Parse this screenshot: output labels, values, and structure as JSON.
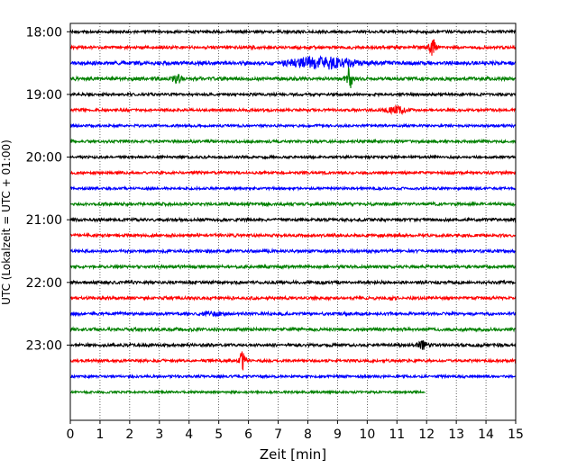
{
  "chart_data": {
    "type": "line",
    "title": "",
    "xlabel": "Zeit  [min]",
    "ylabel": "UTC (Lokalzeit = UTC + 01:00)",
    "xlim": [
      0,
      15
    ],
    "xticks": [
      0,
      1,
      2,
      3,
      4,
      5,
      6,
      7,
      8,
      9,
      10,
      11,
      12,
      13,
      14,
      15
    ],
    "ylim_time": [
      "17:52",
      "24:12"
    ],
    "yticks": [
      "18:00",
      "19:00",
      "20:00",
      "21:00",
      "22:00",
      "23:00"
    ],
    "grid": {
      "x": true,
      "y": false,
      "style": "dotted"
    },
    "legend": "none",
    "trace_interval_min": 15,
    "colors": [
      "#000000",
      "#ff0000",
      "#0000ff",
      "#008000"
    ],
    "series": [
      {
        "start": "18:00",
        "color": "#000000",
        "end_min": 15,
        "noise": 1.2,
        "events": []
      },
      {
        "start": "18:15",
        "color": "#ff0000",
        "end_min": 15,
        "noise": 1.3,
        "events": [
          {
            "t": 12.2,
            "amp": 9,
            "dur": 0.12
          }
        ]
      },
      {
        "start": "18:30",
        "color": "#0000ff",
        "end_min": 15,
        "noise": 1.6,
        "events": [
          {
            "t": 7.8,
            "amp": 3,
            "dur": 0.6
          },
          {
            "t": 8.8,
            "amp": 5,
            "dur": 0.9
          }
        ]
      },
      {
        "start": "18:45",
        "color": "#008000",
        "end_min": 15,
        "noise": 1.5,
        "events": [
          {
            "t": 3.6,
            "amp": 4,
            "dur": 0.15
          },
          {
            "t": 9.4,
            "amp": 12,
            "dur": 0.1
          }
        ]
      },
      {
        "start": "19:00",
        "color": "#000000",
        "end_min": 15,
        "noise": 1.2,
        "events": []
      },
      {
        "start": "19:15",
        "color": "#ff0000",
        "end_min": 15,
        "noise": 1.2,
        "events": [
          {
            "t": 11.0,
            "amp": 4,
            "dur": 0.3
          }
        ]
      },
      {
        "start": "19:30",
        "color": "#0000ff",
        "end_min": 15,
        "noise": 1.1,
        "events": []
      },
      {
        "start": "19:45",
        "color": "#008000",
        "end_min": 15,
        "noise": 1.2,
        "events": []
      },
      {
        "start": "20:00",
        "color": "#000000",
        "end_min": 15,
        "noise": 1.1,
        "events": []
      },
      {
        "start": "20:15",
        "color": "#ff0000",
        "end_min": 15,
        "noise": 1.2,
        "events": []
      },
      {
        "start": "20:30",
        "color": "#0000ff",
        "end_min": 15,
        "noise": 1.1,
        "events": []
      },
      {
        "start": "20:45",
        "color": "#008000",
        "end_min": 15,
        "noise": 1.3,
        "events": []
      },
      {
        "start": "21:00",
        "color": "#000000",
        "end_min": 15,
        "noise": 1.3,
        "events": []
      },
      {
        "start": "21:15",
        "color": "#ff0000",
        "end_min": 15,
        "noise": 1.3,
        "events": []
      },
      {
        "start": "21:30",
        "color": "#0000ff",
        "end_min": 15,
        "noise": 1.3,
        "events": []
      },
      {
        "start": "21:45",
        "color": "#008000",
        "end_min": 15,
        "noise": 1.3,
        "events": []
      },
      {
        "start": "22:00",
        "color": "#000000",
        "end_min": 15,
        "noise": 1.3,
        "events": []
      },
      {
        "start": "22:15",
        "color": "#ff0000",
        "end_min": 15,
        "noise": 1.3,
        "events": []
      },
      {
        "start": "22:30",
        "color": "#0000ff",
        "end_min": 15,
        "noise": 1.3,
        "events": [
          {
            "t": 4.8,
            "amp": 2,
            "dur": 0.3
          }
        ]
      },
      {
        "start": "22:45",
        "color": "#008000",
        "end_min": 15,
        "noise": 1.4,
        "events": []
      },
      {
        "start": "23:00",
        "color": "#000000",
        "end_min": 15,
        "noise": 1.3,
        "events": [
          {
            "t": 11.9,
            "amp": 4,
            "dur": 0.2
          }
        ]
      },
      {
        "start": "23:15",
        "color": "#ff0000",
        "end_min": 15,
        "noise": 1.2,
        "events": [
          {
            "t": 5.8,
            "amp": 10,
            "dur": 0.1
          }
        ]
      },
      {
        "start": "23:30",
        "color": "#0000ff",
        "end_min": 15,
        "noise": 1.1,
        "events": []
      },
      {
        "start": "23:45",
        "color": "#008000",
        "end_min": 11.95,
        "noise": 1.0,
        "events": []
      }
    ]
  }
}
